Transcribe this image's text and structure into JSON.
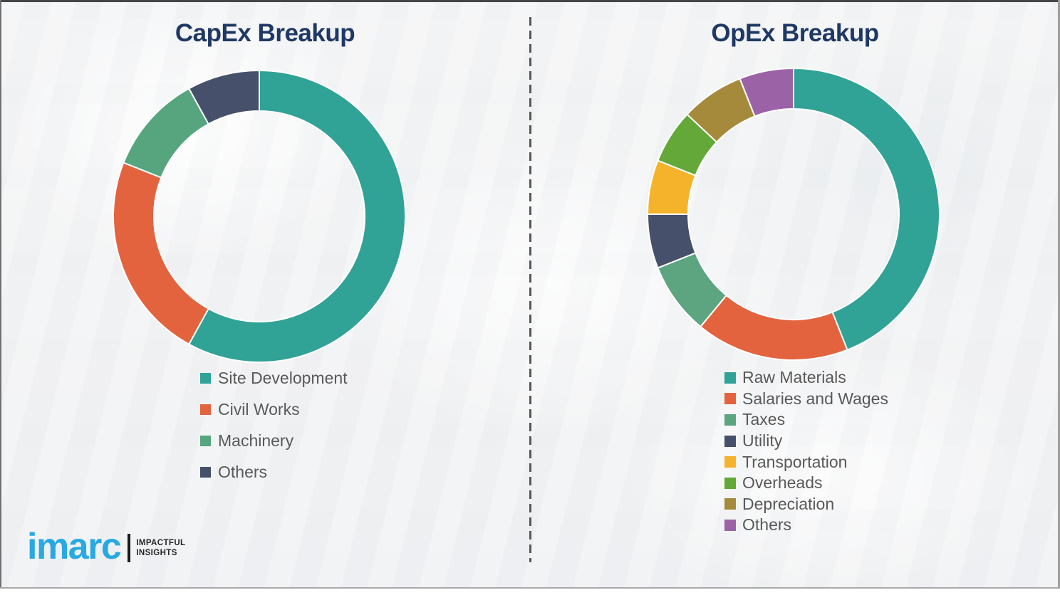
{
  "chart_data": [
    {
      "type": "pie",
      "subtype": "donut",
      "title": "CapEx Breakup",
      "labels": [
        "Site Development",
        "Civil Works",
        "Machinery",
        "Others"
      ],
      "values": [
        58,
        23,
        11,
        8
      ],
      "values_note": "percent, estimated from arc angles (no data labels shown)",
      "colors": [
        "#31A296",
        "#E2633E",
        "#57A57E",
        "#47506A"
      ],
      "start_angle_deg": 0,
      "direction": "clockwise",
      "legend_position": "below-left"
    },
    {
      "type": "pie",
      "subtype": "donut",
      "title": "OpEx Breakup",
      "labels": [
        "Raw Materials",
        "Salaries and Wages",
        "Taxes",
        "Utility",
        "Transportation",
        "Overheads",
        "Depreciation",
        "Others"
      ],
      "values": [
        44,
        17,
        8,
        6,
        6,
        6,
        7,
        6
      ],
      "values_note": "percent, estimated from arc angles (no data labels shown)",
      "colors": [
        "#31A296",
        "#E2633E",
        "#5CA580",
        "#47506A",
        "#F5B32C",
        "#63A838",
        "#A68A3C",
        "#9B62A5"
      ],
      "start_angle_deg": 0,
      "direction": "clockwise",
      "legend_position": "below-left"
    }
  ],
  "logo": {
    "brand": "imarc",
    "tagline_line1": "IMPACTFUL",
    "tagline_line2": "INSIGHTS"
  },
  "colors": {
    "title_text": "#1F3864",
    "legend_text": "#595959",
    "divider": "#575757",
    "logo_blue": "#29A9E1",
    "background": "#F2F3F4"
  }
}
